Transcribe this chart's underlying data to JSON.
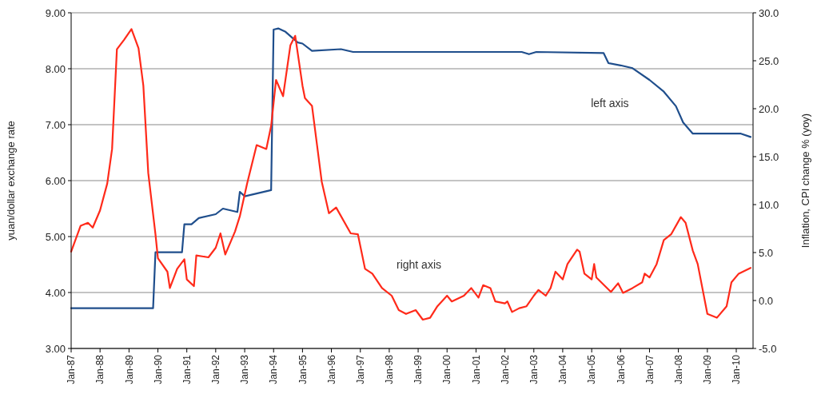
{
  "chart_data": {
    "type": "line",
    "ylabel": "yuan/dollar exchange rate",
    "y2label": "Inflation, CPI change % (yoy)",
    "xlim": [
      "1987-01",
      "2010-08"
    ],
    "xticks": [
      {
        "value": "1987-01",
        "label": "Jan-87"
      },
      {
        "value": "1988-01",
        "label": "Jan-88"
      },
      {
        "value": "1989-01",
        "label": "Jan-89"
      },
      {
        "value": "1990-01",
        "label": "Jan-90"
      },
      {
        "value": "1991-01",
        "label": "Jan-91"
      },
      {
        "value": "1992-01",
        "label": "Jan-92"
      },
      {
        "value": "1993-01",
        "label": "Jan-93"
      },
      {
        "value": "1994-01",
        "label": "Jan-94"
      },
      {
        "value": "1995-01",
        "label": "Jan-95"
      },
      {
        "value": "1996-01",
        "label": "Jan-96"
      },
      {
        "value": "1997-01",
        "label": "Jan-97"
      },
      {
        "value": "1998-01",
        "label": "Jan-98"
      },
      {
        "value": "1999-01",
        "label": "Jan-99"
      },
      {
        "value": "2000-01",
        "label": "Jan-00"
      },
      {
        "value": "2001-01",
        "label": "Jan-01"
      },
      {
        "value": "2002-01",
        "label": "Jan-02"
      },
      {
        "value": "2003-01",
        "label": "Jan-03"
      },
      {
        "value": "2004-01",
        "label": "Jan-04"
      },
      {
        "value": "2005-01",
        "label": "Jan-05"
      },
      {
        "value": "2006-01",
        "label": "Jan-06"
      },
      {
        "value": "2007-01",
        "label": "Jan-07"
      },
      {
        "value": "2008-01",
        "label": "Jan-08"
      },
      {
        "value": "2009-01",
        "label": "Jan-09"
      },
      {
        "value": "2010-01",
        "label": "Jan-10"
      }
    ],
    "ylim": [
      3,
      9
    ],
    "yticks": [
      {
        "value": 3,
        "label": "3.00"
      },
      {
        "value": 4,
        "label": "4.00"
      },
      {
        "value": 5,
        "label": "5.00"
      },
      {
        "value": 6,
        "label": "6.00"
      },
      {
        "value": 7,
        "label": "7.00"
      },
      {
        "value": 8,
        "label": "8.00"
      },
      {
        "value": 9,
        "label": "9.00"
      }
    ],
    "y2lim": [
      -5,
      30
    ],
    "y2ticks": [
      {
        "value": -5,
        "label": "-5.0"
      },
      {
        "value": 0,
        "label": "0.0"
      },
      {
        "value": 5,
        "label": "5.0"
      },
      {
        "value": 10,
        "label": "10.0"
      },
      {
        "value": 15,
        "label": "15.0"
      },
      {
        "value": 20,
        "label": "20.0"
      },
      {
        "value": 25,
        "label": "25.0"
      },
      {
        "value": 30,
        "label": "30.0"
      }
    ],
    "grid": "y",
    "annotations": [
      "left axis",
      "right axis"
    ],
    "series": [
      {
        "color": "#1f4e8c",
        "x": [
          "1987-01",
          "1989-11",
          "1989-12",
          "1990-11",
          "1990-12",
          "1991-03",
          "1991-06",
          "1992-01",
          "1992-04",
          "1992-10",
          "1992-11",
          "1993-01",
          "1993-12",
          "1994-01",
          "1994-03",
          "1994-06",
          "1994-11",
          "1995-01",
          "1995-05",
          "1996-05",
          "1996-10",
          "2002-08",
          "2002-11",
          "2003-02",
          "2005-06",
          "2005-08",
          "2006-01",
          "2006-06",
          "2007-01",
          "2007-07",
          "2007-12",
          "2008-03",
          "2008-07",
          "2010-03",
          "2010-07"
        ],
        "values": [
          3.72,
          3.72,
          4.72,
          4.72,
          5.22,
          5.22,
          5.33,
          5.4,
          5.5,
          5.44,
          5.8,
          5.72,
          5.83,
          8.7,
          8.72,
          8.66,
          8.47,
          8.45,
          8.32,
          8.35,
          8.3,
          8.3,
          8.26,
          8.3,
          8.28,
          8.1,
          8.06,
          8.01,
          7.8,
          7.59,
          7.33,
          7.04,
          6.84,
          6.84,
          6.78
        ]
      },
      {
        "color": "#ff2a1a",
        "axis": "y2",
        "x": [
          "1987-01",
          "1987-05",
          "1987-08",
          "1987-10",
          "1988-01",
          "1988-04",
          "1988-06",
          "1988-08",
          "1988-11",
          "1989-02",
          "1989-05",
          "1989-07",
          "1989-09",
          "1989-12",
          "1990-01",
          "1990-05",
          "1990-06",
          "1990-09",
          "1990-12",
          "1991-01",
          "1991-04",
          "1991-05",
          "1991-10",
          "1992-01",
          "1992-03",
          "1992-05",
          "1992-09",
          "1992-11",
          "1993-02",
          "1993-06",
          "1993-10",
          "1993-12",
          "1994-02",
          "1994-05",
          "1994-08",
          "1994-10",
          "1995-01",
          "1995-02",
          "1995-05",
          "1995-09",
          "1995-12",
          "1996-03",
          "1996-09",
          "1996-12",
          "1997-03",
          "1997-06",
          "1997-10",
          "1998-02",
          "1998-05",
          "1998-08",
          "1998-12",
          "1999-03",
          "1999-06",
          "1999-09",
          "2000-01",
          "2000-03",
          "2000-08",
          "2000-11",
          "2001-02",
          "2001-04",
          "2001-07",
          "2001-09",
          "2002-01",
          "2002-02",
          "2002-04",
          "2002-07",
          "2002-10",
          "2003-01",
          "2003-03",
          "2003-06",
          "2003-08",
          "2003-10",
          "2004-01",
          "2004-03",
          "2004-07",
          "2004-08",
          "2004-10",
          "2005-01",
          "2005-02",
          "2005-03",
          "2005-09",
          "2005-12",
          "2006-02",
          "2006-06",
          "2006-10",
          "2006-11",
          "2007-01",
          "2007-04",
          "2007-07",
          "2007-10",
          "2008-02",
          "2008-04",
          "2008-07",
          "2008-09",
          "2009-01",
          "2009-05",
          "2009-09",
          "2009-11",
          "2010-02",
          "2010-07"
        ],
        "values": [
          5.1,
          7.8,
          8.1,
          7.6,
          9.4,
          12.2,
          15.8,
          26.2,
          27.2,
          28.3,
          26.3,
          22.4,
          13.3,
          6.9,
          4.4,
          3.0,
          1.3,
          3.3,
          4.3,
          2.2,
          1.5,
          4.7,
          4.5,
          5.5,
          7.0,
          4.8,
          7.2,
          8.8,
          12.2,
          16.2,
          15.8,
          18.2,
          23.0,
          21.3,
          26.6,
          27.6,
          22.4,
          21.1,
          20.3,
          12.4,
          9.1,
          9.7,
          7.0,
          6.9,
          3.3,
          2.8,
          1.3,
          0.5,
          -1.0,
          -1.4,
          -1.0,
          -2.0,
          -1.8,
          -0.6,
          0.5,
          -0.1,
          0.5,
          1.3,
          0.3,
          1.6,
          1.3,
          -0.1,
          -0.3,
          -0.1,
          -1.2,
          -0.8,
          -0.6,
          0.5,
          1.1,
          0.5,
          1.3,
          3.0,
          2.2,
          3.8,
          5.3,
          5.1,
          2.8,
          2.2,
          3.8,
          2.4,
          0.9,
          1.8,
          0.8,
          1.3,
          1.9,
          2.8,
          2.4,
          3.8,
          6.3,
          6.9,
          8.7,
          8.1,
          5.2,
          3.8,
          -1.4,
          -1.8,
          -0.6,
          1.9,
          2.8,
          3.4
        ]
      }
    ]
  }
}
